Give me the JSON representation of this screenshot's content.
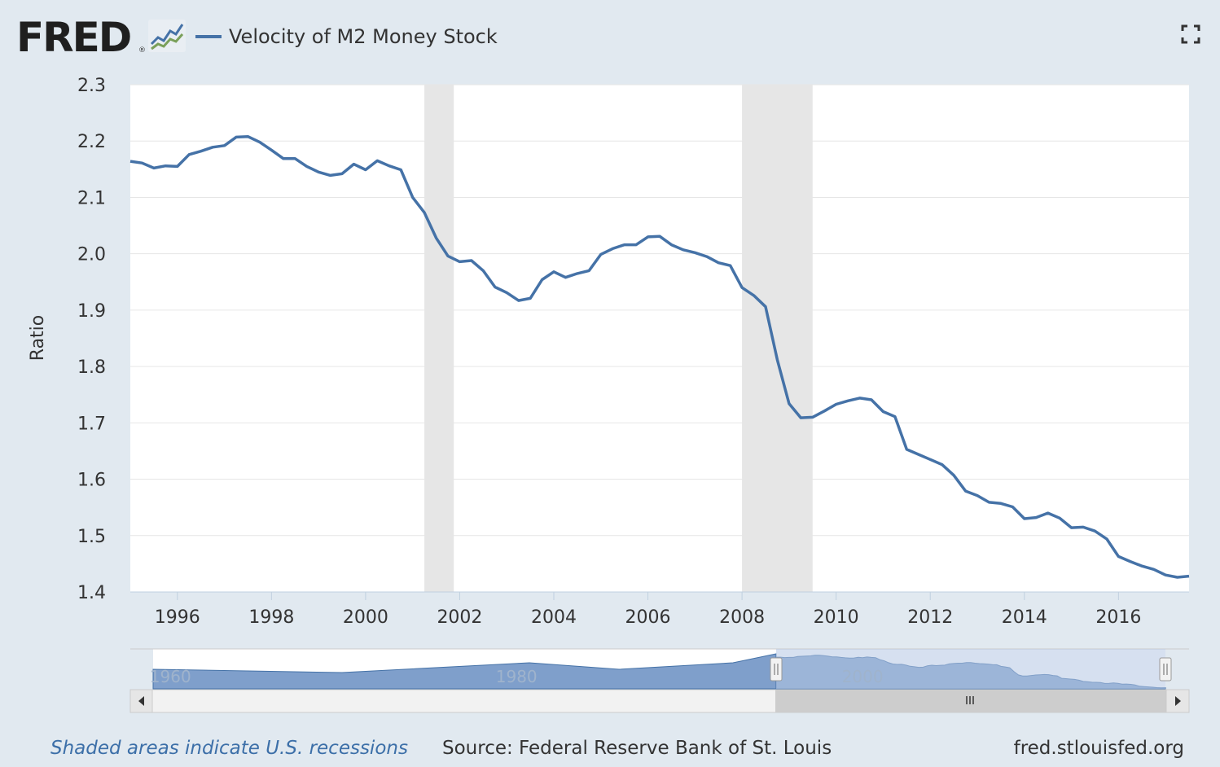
{
  "header": {
    "logo_text": "FRED",
    "logo_reg": "®",
    "series_title": "Velocity of M2 Money Stock",
    "fullscreen_icon": "fullscreen-icon",
    "chart_icon": "line-chart-icon"
  },
  "colors": {
    "background": "#e1e9f0",
    "plot_background": "#ffffff",
    "series_line": "#4572a7",
    "recession_shade": "#e6e6e6",
    "navigator_fill": "#7f9fcb",
    "navigator_selected": "#b4c6e4"
  },
  "chart_data": {
    "type": "line",
    "title": "Velocity of M2 Money Stock",
    "xlabel": "",
    "ylabel": "Ratio",
    "xlim": [
      1995.0,
      2017.5
    ],
    "ylim": [
      1.4,
      2.3
    ],
    "yticks": [
      "1.4",
      "1.5",
      "1.6",
      "1.7",
      "1.8",
      "1.9",
      "2.0",
      "2.1",
      "2.2",
      "2.3"
    ],
    "xticks": [
      "1996",
      "1998",
      "2000",
      "2002",
      "2004",
      "2006",
      "2008",
      "2010",
      "2012",
      "2014",
      "2016"
    ],
    "grid": true,
    "legend": "top-left",
    "recessions": [
      [
        2001.25,
        2001.875
      ],
      [
        2008.0,
        2009.5
      ]
    ],
    "series": [
      {
        "name": "Velocity of M2 Money Stock",
        "x": [
          1995.0,
          1995.25,
          1995.5,
          1995.75,
          1996.0,
          1996.25,
          1996.5,
          1996.75,
          1997.0,
          1997.25,
          1997.5,
          1997.75,
          1998.0,
          1998.25,
          1998.5,
          1998.75,
          1999.0,
          1999.25,
          1999.5,
          1999.75,
          2000.0,
          2000.25,
          2000.5,
          2000.75,
          2001.0,
          2001.25,
          2001.5,
          2001.75,
          2002.0,
          2002.25,
          2002.5,
          2002.75,
          2003.0,
          2003.25,
          2003.5,
          2003.75,
          2004.0,
          2004.25,
          2004.5,
          2004.75,
          2005.0,
          2005.25,
          2005.5,
          2005.75,
          2006.0,
          2006.25,
          2006.5,
          2006.75,
          2007.0,
          2007.25,
          2007.5,
          2007.75,
          2008.0,
          2008.25,
          2008.5,
          2008.75,
          2009.0,
          2009.25,
          2009.5,
          2009.75,
          2010.0,
          2010.25,
          2010.5,
          2010.75,
          2011.0,
          2011.25,
          2011.5,
          2011.75,
          2012.0,
          2012.25,
          2012.5,
          2012.75,
          2013.0,
          2013.25,
          2013.5,
          2013.75,
          2014.0,
          2014.25,
          2014.5,
          2014.75,
          2015.0,
          2015.25,
          2015.5,
          2015.75,
          2016.0,
          2016.25,
          2016.5,
          2016.75,
          2017.0,
          2017.25,
          2017.5
        ],
        "values": [
          2.164,
          2.161,
          2.152,
          2.156,
          2.155,
          2.176,
          2.182,
          2.189,
          2.192,
          2.207,
          2.208,
          2.198,
          2.184,
          2.169,
          2.169,
          2.155,
          2.145,
          2.139,
          2.142,
          2.159,
          2.149,
          2.165,
          2.156,
          2.149,
          2.1,
          2.073,
          2.028,
          1.996,
          1.986,
          1.988,
          1.97,
          1.941,
          1.931,
          1.917,
          1.921,
          1.954,
          1.968,
          1.958,
          1.965,
          1.97,
          1.999,
          2.009,
          2.016,
          2.016,
          2.03,
          2.031,
          2.016,
          2.007,
          2.002,
          1.995,
          1.984,
          1.979,
          1.94,
          1.926,
          1.906,
          1.812,
          1.734,
          1.709,
          1.71,
          1.721,
          1.733,
          1.739,
          1.744,
          1.741,
          1.72,
          1.711,
          1.653,
          1.644,
          1.635,
          1.626,
          1.607,
          1.579,
          1.571,
          1.559,
          1.557,
          1.551,
          1.53,
          1.532,
          1.54,
          1.531,
          1.514,
          1.515,
          1.508,
          1.494,
          1.463,
          1.454,
          1.446,
          1.44,
          1.43,
          1.426,
          1.428
        ]
      }
    ],
    "navigator": {
      "labels": [
        "1960",
        "1980",
        "2000"
      ],
      "range": [
        1959.0,
        2017.5
      ],
      "selected": [
        1995.0,
        2017.5
      ]
    }
  },
  "footer": {
    "note": "Shaded areas indicate U.S. recessions",
    "source": "Source: Federal Reserve Bank of St. Louis",
    "site": "fred.stlouisfed.org"
  }
}
